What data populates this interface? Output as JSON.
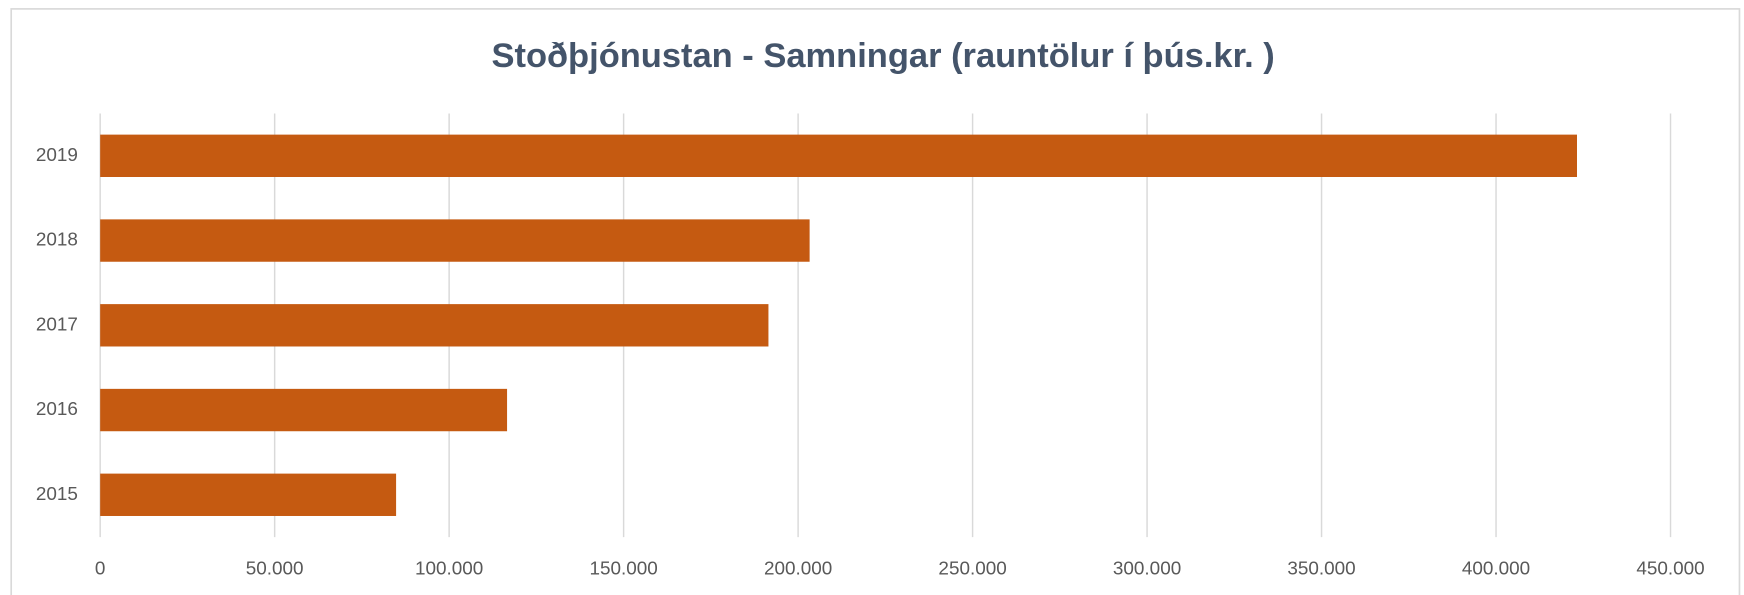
{
  "chart_data": {
    "type": "bar",
    "orientation": "horizontal",
    "title": "Stoðþjónustan - Samningar (rauntölur í þús.kr. )",
    "categories": [
      "2015",
      "2016",
      "2017",
      "2018",
      "2019"
    ],
    "values": [
      84800,
      116600,
      191500,
      203300,
      423200
    ],
    "color": "#c55a11",
    "xlim": [
      0,
      450000
    ],
    "xticks": [
      0,
      {
        "value": 50000,
        "label": "50.000"
      },
      {
        "value": 100000,
        "label": "100.000"
      },
      {
        "value": 150000,
        "label": "150.000"
      },
      {
        "value": 200000,
        "label": "200.000"
      },
      {
        "value": 250000,
        "label": "250.000"
      },
      {
        "value": 300000,
        "label": "300.000"
      },
      {
        "value": 350000,
        "label": "350.000"
      },
      {
        "value": 400000,
        "label": "400.000"
      },
      {
        "value": 450000,
        "label": "450.000"
      }
    ],
    "grid": true
  }
}
